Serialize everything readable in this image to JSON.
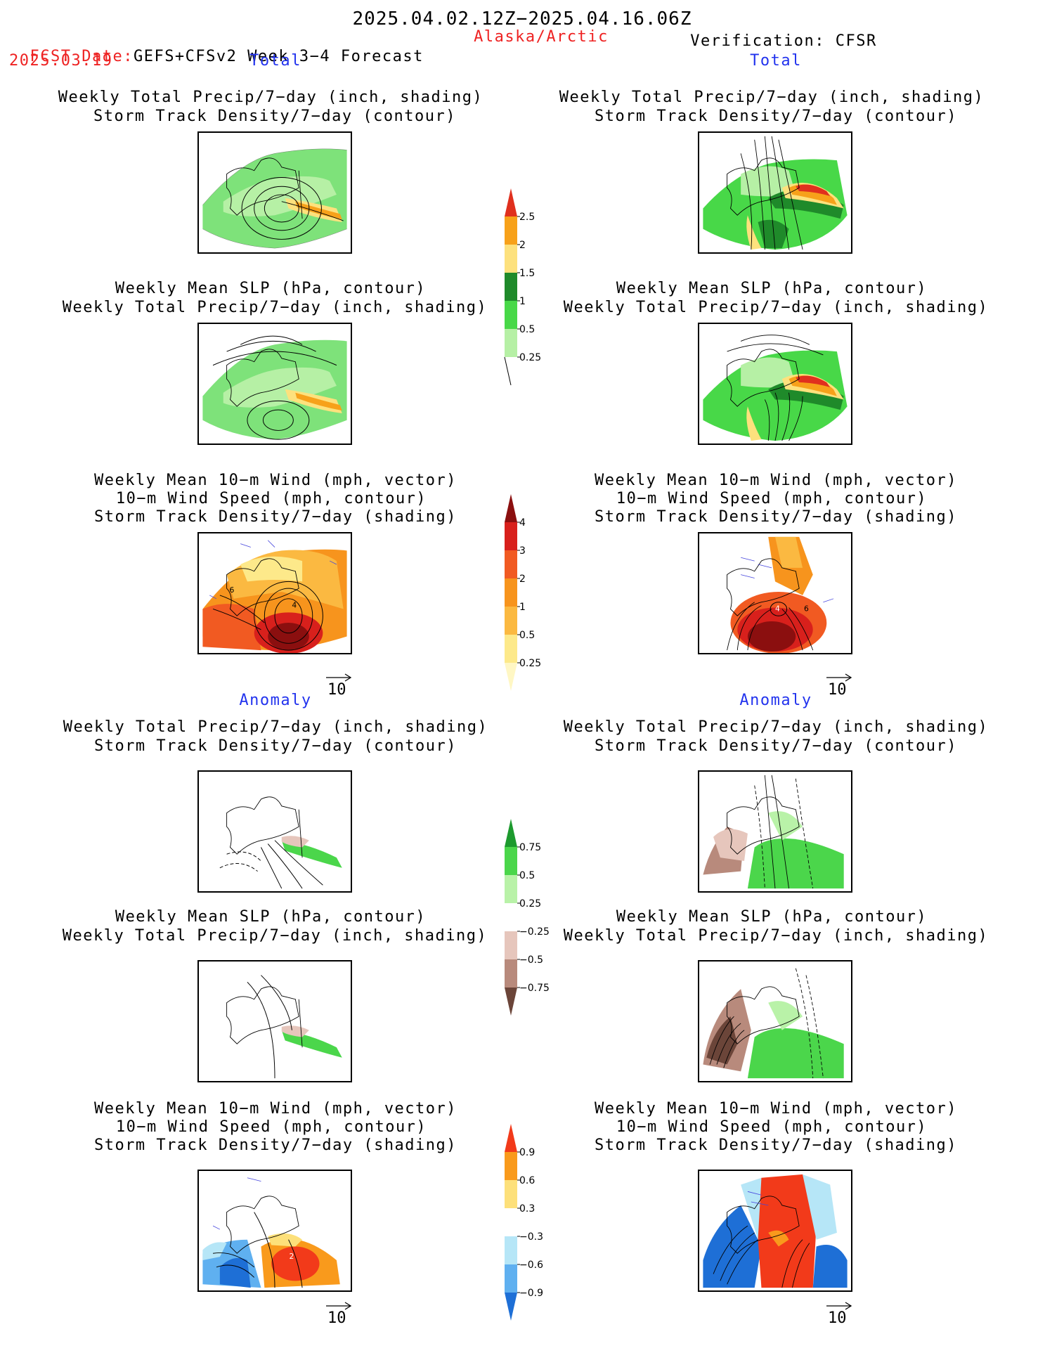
{
  "header": {
    "date_range": "2025.04.02.12Z−2025.04.16.06Z",
    "fcst_label": "FCST Date:",
    "fcst_model": "GEFS+CFSv2 Week 3−4 Forecast",
    "fcst_date": "2025.03.19",
    "region": "Alaska/Arctic",
    "verification": "Verification: CFSR"
  },
  "sections": {
    "total": "Total",
    "anomaly": "Anomaly"
  },
  "titles": {
    "precip_storm": [
      "Weekly Total Precip/7−day (inch, shading)",
      "Storm Track Density/7−day (contour)"
    ],
    "slp_precip": [
      "Weekly Mean SLP (hPa, contour)",
      "Weekly Total Precip/7−day (inch, shading)"
    ],
    "wind_storm": [
      "Weekly Mean 10−m Wind (mph, vector)",
      "10−m Wind Speed (mph, contour)",
      "Storm Track Density/7−day (shading)"
    ]
  },
  "vector_ref": "10",
  "colorbars": {
    "total_precip": {
      "labels": [
        "2.5",
        "2",
        "1.5",
        "1",
        "0.5",
        "0.25"
      ],
      "colors": [
        "#e0301e",
        "#f7a11a",
        "#fde17d",
        "#1f8a2a",
        "#48d848",
        "#b6f0a5"
      ]
    },
    "total_storm": {
      "labels": [
        "4",
        "3",
        "2",
        "1",
        "0.5",
        "0.25"
      ],
      "colors": [
        "#8b0f0f",
        "#d8201c",
        "#f15a22",
        "#f7941d",
        "#fbb941",
        "#fde98a",
        "#fff7c4"
      ]
    },
    "anom_precip": {
      "labels": [
        "0.75",
        "0.5",
        "0.25",
        "−0.25",
        "−0.5",
        "−0.75"
      ],
      "colors": [
        "#1d9a2e",
        "#4bd64b",
        "#b9f2a8",
        "#ffffff",
        "#e6c6bc",
        "#b88a7c",
        "#6b4539"
      ]
    },
    "anom_storm": {
      "labels": [
        "0.9",
        "0.6",
        "0.3",
        "−0.3",
        "−0.6",
        "−0.9"
      ],
      "colors": [
        "#f23a1a",
        "#f99a1c",
        "#fde07a",
        "#ffffff",
        "#b6e6f7",
        "#5fb0f0",
        "#1e6fd6"
      ]
    }
  },
  "map_icons": {
    "land": "alaska-outline",
    "wind": "wind-vector"
  },
  "contour_labels": {
    "fcst_total_storm": [
      "6",
      "4"
    ],
    "verif_total_storm": [
      "4",
      "6"
    ],
    "fcst_anom_storm": [
      "2"
    ]
  }
}
